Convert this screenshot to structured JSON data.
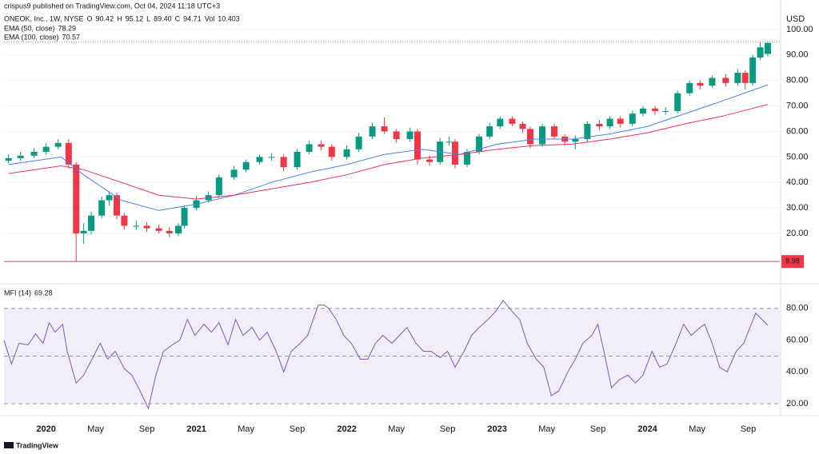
{
  "header": {
    "publisher": "crispus9 published on TradingView.com, Oct 04, 2024 11:18 UTC+3",
    "logo": "TradingView"
  },
  "chart_data": [
    {
      "type": "candlestick",
      "title": "ONEOK, Inc., 1W, NYSE",
      "currency": "USD",
      "ohlc_legend": [
        {
          "key": "O",
          "text": "90.42"
        },
        {
          "key": "H",
          "text": "95.12"
        },
        {
          "key": "L",
          "text": "89.40"
        },
        {
          "key": "C",
          "text": "94.71"
        },
        {
          "key": "Vol",
          "text": "10.403"
        }
      ],
      "up_color": "#089981",
      "down_color": "#f23645",
      "x": [
        2019.75,
        2019.83,
        2019.92,
        2020.0,
        2020.08,
        2020.15,
        2020.2,
        2020.25,
        2020.3,
        2020.37,
        2020.42,
        2020.47,
        2020.52,
        2020.6,
        2020.67,
        2020.75,
        2020.82,
        2020.88,
        2020.92,
        2021.0,
        2021.08,
        2021.15,
        2021.25,
        2021.33,
        2021.42,
        2021.5,
        2021.58,
        2021.67,
        2021.75,
        2021.83,
        2021.9,
        2022.0,
        2022.08,
        2022.17,
        2022.25,
        2022.33,
        2022.42,
        2022.47,
        2022.55,
        2022.62,
        2022.68,
        2022.72,
        2022.8,
        2022.88,
        2022.95,
        2023.02,
        2023.1,
        2023.17,
        2023.22,
        2023.3,
        2023.38,
        2023.45,
        2023.52,
        2023.6,
        2023.68,
        2023.75,
        2023.82,
        2023.9,
        2023.97,
        2024.05,
        2024.12,
        2024.2,
        2024.28,
        2024.35,
        2024.43,
        2024.52,
        2024.6,
        2024.65,
        2024.7,
        2024.75,
        2024.8
      ],
      "open": [
        48.5,
        49.5,
        50.5,
        52,
        54,
        55.5,
        47,
        20,
        21,
        27,
        33,
        35,
        27,
        23,
        23,
        22,
        21,
        20,
        23,
        30,
        33,
        35,
        42,
        45,
        48,
        50,
        50,
        46,
        52,
        55,
        54,
        50,
        53,
        58,
        62,
        60,
        57,
        60,
        49,
        48,
        56,
        56,
        47,
        52,
        58,
        62,
        65,
        63,
        61,
        55,
        62,
        58,
        56,
        57,
        63,
        62,
        65,
        63,
        67,
        69,
        68,
        68,
        75,
        79,
        78,
        81,
        79,
        83,
        79,
        89,
        90.42
      ],
      "high": [
        51,
        52,
        53.5,
        55.5,
        57,
        57,
        48,
        24,
        28.5,
        34.5,
        36.5,
        36,
        28,
        25,
        24.5,
        23.5,
        22.5,
        24,
        31,
        34.5,
        36.5,
        43,
        46.5,
        49,
        51,
        51.5,
        51,
        53,
        56.5,
        56.5,
        55,
        54.5,
        59.5,
        63.5,
        65.5,
        61,
        61.5,
        61,
        50.5,
        57.5,
        58,
        57,
        53,
        59,
        63.5,
        66,
        66,
        64,
        62,
        63,
        63,
        59,
        58.5,
        64,
        64.5,
        66,
        66,
        68,
        70,
        70,
        69.5,
        76,
        80,
        80,
        82,
        82.5,
        84.5,
        84,
        90,
        95,
        95.12
      ],
      "low": [
        47.5,
        48.5,
        49.5,
        51,
        53,
        45.5,
        8.98,
        16,
        19.5,
        26,
        31,
        25.5,
        21.5,
        21.5,
        20.5,
        20,
        18.5,
        19,
        22,
        29,
        32,
        34,
        41,
        44,
        47,
        48.5,
        44.5,
        45,
        51,
        52.5,
        48.5,
        49,
        52,
        57,
        59,
        55.5,
        56,
        47,
        46.5,
        47,
        54.5,
        45.5,
        46,
        51,
        57,
        61,
        62,
        59.5,
        53.5,
        54,
        57,
        54.5,
        53,
        56,
        60.5,
        61,
        61.5,
        62,
        66,
        66.5,
        66.5,
        67,
        74,
        76.5,
        77,
        77.5,
        78,
        76.5,
        78,
        88,
        89.4
      ],
      "close": [
        49.5,
        50.5,
        52,
        54,
        55.5,
        47,
        20,
        21,
        27,
        33,
        35,
        27,
        23,
        23,
        22,
        21,
        20,
        23,
        30,
        33,
        35,
        42,
        45,
        48,
        50,
        50,
        46,
        52,
        55,
        54,
        50,
        53,
        58,
        62,
        60,
        57,
        60,
        49,
        48,
        56,
        56,
        47,
        52,
        58,
        62,
        65,
        63,
        61,
        55,
        62,
        58,
        56,
        57,
        63,
        62,
        65,
        63,
        67,
        69,
        68,
        68,
        75,
        79,
        78,
        81,
        79,
        83,
        79,
        89,
        93,
        94.71
      ],
      "lines": [
        {
          "name": "EMA (50, close)",
          "color": "#4a7fe8",
          "x": [
            2019.75,
            2020.1,
            2020.25,
            2020.5,
            2020.75,
            2021.0,
            2021.25,
            2021.5,
            2021.75,
            2022.0,
            2022.25,
            2022.5,
            2022.75,
            2023.0,
            2023.25,
            2023.5,
            2023.75,
            2024.0,
            2024.25,
            2024.5,
            2024.8
          ],
          "values": [
            47,
            50,
            43,
            33,
            29,
            31.5,
            35,
            40,
            44,
            47,
            51,
            53,
            51,
            55,
            57,
            57,
            59,
            62,
            67,
            72,
            78.29
          ]
        },
        {
          "name": "EMA (100, close)",
          "color": "#e8335e",
          "x": [
            2019.75,
            2020.1,
            2020.25,
            2020.5,
            2020.75,
            2021.0,
            2021.25,
            2021.5,
            2021.75,
            2022.0,
            2022.25,
            2022.5,
            2022.75,
            2023.0,
            2023.25,
            2023.5,
            2023.75,
            2024.0,
            2024.25,
            2024.5,
            2024.8
          ],
          "values": [
            43.5,
            46.5,
            45,
            40,
            35,
            33.5,
            35,
            37.5,
            40,
            43,
            47,
            49.5,
            51,
            53,
            54.5,
            55,
            57,
            59.5,
            63,
            66,
            70.57
          ]
        }
      ],
      "price_line": {
        "value": 8.98,
        "color": "#f23645"
      },
      "xlim": [
        2019.72,
        2024.88
      ],
      "ylim": [
        1.2,
        107.8
      ],
      "yticks": [
        {
          "value": 20,
          "label": "20.00"
        },
        {
          "value": 30,
          "label": "30.00"
        },
        {
          "value": 40,
          "label": "40.00"
        },
        {
          "value": 50,
          "label": "50.00"
        },
        {
          "value": 60,
          "label": "60.00"
        },
        {
          "value": 70,
          "label": "70.00"
        },
        {
          "value": 80,
          "label": "80.00"
        },
        {
          "value": 90,
          "label": "90.00"
        },
        {
          "value": 100,
          "label": "100.00"
        }
      ]
    },
    {
      "type": "line",
      "name": "MFI (14)",
      "color": "#7e57c2",
      "x": [
        2019.72,
        2019.77,
        2019.82,
        2019.88,
        2019.93,
        2019.98,
        2020.02,
        2020.06,
        2020.11,
        2020.14,
        2020.2,
        2020.25,
        2020.3,
        2020.36,
        2020.41,
        2020.46,
        2020.52,
        2020.57,
        2020.62,
        2020.68,
        2020.73,
        2020.78,
        2020.84,
        2020.89,
        2020.94,
        2020.99,
        2021.05,
        2021.1,
        2021.15,
        2021.21,
        2021.26,
        2021.31,
        2021.37,
        2021.42,
        2021.47,
        2021.53,
        2021.58,
        2021.63,
        2021.69,
        2021.74,
        2021.81,
        2021.85,
        2021.88,
        2021.93,
        2021.98,
        2022.03,
        2022.09,
        2022.14,
        2022.19,
        2022.24,
        2022.3,
        2022.35,
        2022.4,
        2022.46,
        2022.51,
        2022.56,
        2022.62,
        2022.67,
        2022.72,
        2022.78,
        2022.83,
        2022.88,
        2022.94,
        2022.99,
        2023.04,
        2023.1,
        2023.15,
        2023.2,
        2023.26,
        2023.31,
        2023.36,
        2023.41,
        2023.47,
        2023.52,
        2023.57,
        2023.63,
        2023.67,
        2023.71,
        2023.76,
        2023.81,
        2023.87,
        2023.92,
        2023.97,
        2024.03,
        2024.08,
        2024.13,
        2024.19,
        2024.24,
        2024.29,
        2024.35,
        2024.38,
        2024.43,
        2024.48,
        2024.53,
        2024.59,
        2024.64,
        2024.69,
        2024.72,
        2024.8
      ],
      "values": [
        60,
        45,
        58,
        57,
        64,
        58,
        71,
        65,
        70,
        53,
        33,
        38,
        47,
        58,
        48,
        53,
        42,
        38,
        29,
        17,
        38,
        53,
        57,
        60,
        73,
        63,
        70,
        65,
        71,
        57,
        73,
        63,
        68,
        60,
        65,
        53,
        40,
        53,
        58,
        63,
        82,
        82,
        80,
        73,
        63,
        58,
        48,
        48,
        58,
        63,
        58,
        63,
        68,
        58,
        53,
        53,
        49,
        53,
        43,
        53,
        63,
        68,
        73,
        78,
        85,
        78,
        73,
        58,
        48,
        43,
        25,
        28,
        40,
        48,
        58,
        63,
        70,
        53,
        30,
        35,
        38,
        33,
        38,
        53,
        43,
        45,
        58,
        70,
        63,
        68,
        70,
        58,
        43,
        40,
        53,
        58,
        70,
        77,
        69.28
      ],
      "levels": [
        80,
        50,
        20
      ],
      "xlim": [
        2019.72,
        2024.88
      ],
      "ylim": [
        15,
        94
      ],
      "yticks": [
        {
          "value": 20,
          "label": "20.00"
        },
        {
          "value": 40,
          "label": "40.00"
        },
        {
          "value": 60,
          "label": "60.00"
        },
        {
          "value": 80,
          "label": "80.00"
        }
      ],
      "xticks": [
        2020,
        {
          "value": 2020.33,
          "label": "May"
        },
        {
          "value": 2020.67,
          "label": "Sep"
        },
        2021,
        {
          "value": 2021.33,
          "label": "May"
        },
        {
          "value": 2021.67,
          "label": "Sep"
        },
        2022,
        {
          "value": 2022.33,
          "label": "May"
        },
        {
          "value": 2022.67,
          "label": "Sep"
        },
        2023,
        {
          "value": 2023.33,
          "label": "May"
        },
        {
          "value": 2023.67,
          "label": "Sep"
        },
        2024,
        {
          "value": 2024.33,
          "label": "May"
        },
        {
          "value": 2024.67,
          "label": "Sep"
        }
      ]
    }
  ]
}
